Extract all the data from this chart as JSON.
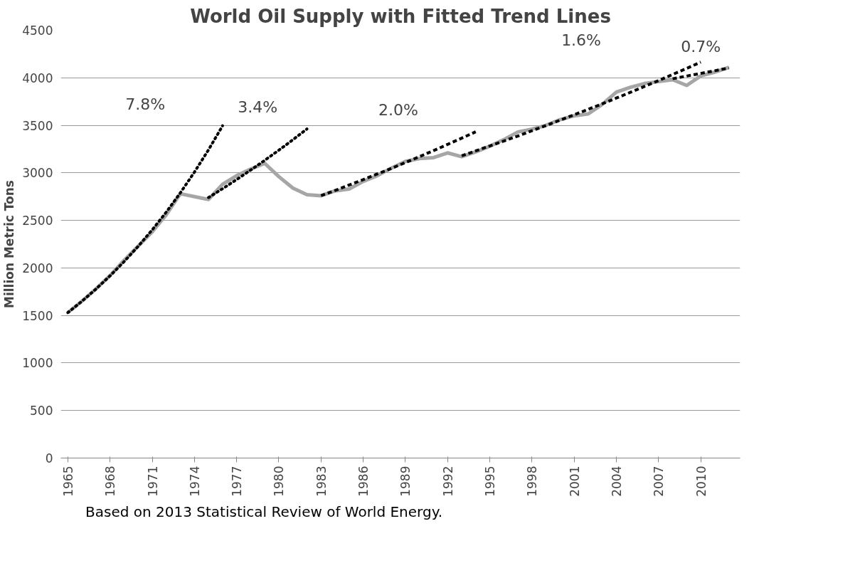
{
  "chart_data": {
    "type": "line",
    "title": "World Oil Supply with Fitted Trend Lines",
    "ylabel": "Million Metric Tons",
    "x": [
      1965,
      1966,
      1967,
      1968,
      1969,
      1970,
      1971,
      1972,
      1973,
      1974,
      1975,
      1976,
      1977,
      1978,
      1979,
      1980,
      1981,
      1982,
      1983,
      1984,
      1985,
      1986,
      1987,
      1988,
      1989,
      1990,
      1991,
      1992,
      1993,
      1994,
      1995,
      1996,
      1997,
      1998,
      1999,
      2000,
      2001,
      2002,
      2003,
      2004,
      2005,
      2006,
      2007,
      2008,
      2009,
      2010,
      2011,
      2012
    ],
    "series": [
      {
        "color": "#a6a6a6",
        "line_style": "solid",
        "values": [
          1530,
          1650,
          1780,
          1920,
          2080,
          2230,
          2380,
          2560,
          2780,
          2750,
          2720,
          2880,
          2970,
          3040,
          3100,
          2960,
          2840,
          2770,
          2760,
          2810,
          2830,
          2910,
          2970,
          3050,
          3120,
          3150,
          3160,
          3210,
          3170,
          3220,
          3280,
          3350,
          3430,
          3460,
          3500,
          3560,
          3600,
          3620,
          3720,
          3850,
          3900,
          3940,
          3960,
          3980,
          3920,
          4020,
          4060,
          4110
        ]
      },
      {
        "color": "#000000",
        "line_style": "dotted",
        "x": [
          1965,
          1966,
          1967,
          1968,
          1969,
          1970,
          1971,
          1972,
          1973,
          1974,
          1975,
          1976
        ],
        "values": [
          1530,
          1649,
          1778,
          1917,
          2066,
          2227,
          2401,
          2588,
          2790,
          3008,
          3242,
          3495
        ]
      },
      {
        "color": "#000000",
        "line_style": "dotted",
        "x": [
          1975,
          1976,
          1977,
          1978,
          1979,
          1980,
          1981,
          1982
        ],
        "values": [
          2740,
          2833,
          2929,
          3029,
          3132,
          3238,
          3348,
          3462
        ]
      },
      {
        "color": "#000000",
        "line_style": "dashed",
        "x": [
          1983,
          1984,
          1985,
          1986,
          1987,
          1988,
          1989,
          1990,
          1991,
          1992,
          1993,
          1994
        ],
        "values": [
          2760,
          2815,
          2872,
          2929,
          2988,
          3047,
          3108,
          3171,
          3234,
          3299,
          3365,
          3432
        ]
      },
      {
        "color": "#000000",
        "line_style": "dashed",
        "x": [
          1993,
          1994,
          1995,
          1996,
          1997,
          1998,
          1999,
          2000,
          2001,
          2002,
          2003,
          2004,
          2005,
          2006,
          2007,
          2008,
          2009,
          2010
        ],
        "values": [
          3180,
          3231,
          3283,
          3335,
          3388,
          3443,
          3498,
          3554,
          3611,
          3668,
          3727,
          3787,
          3847,
          3909,
          3971,
          4035,
          4099,
          4165
        ]
      },
      {
        "color": "#000000",
        "line_style": "dashed",
        "x": [
          2008,
          2009,
          2010,
          2011,
          2012
        ],
        "values": [
          3990,
          4018,
          4046,
          4074,
          4103
        ]
      }
    ],
    "xlim": [
      1964.5,
      2012.8
    ],
    "xticks": [
      1965,
      1968,
      1971,
      1974,
      1977,
      1980,
      1983,
      1986,
      1989,
      1992,
      1995,
      1998,
      2001,
      2004,
      2007,
      2010
    ],
    "ylim": [
      0,
      4500
    ],
    "yticks": [
      0,
      500,
      1000,
      1500,
      2000,
      2500,
      3000,
      3500,
      4000,
      4500
    ],
    "grid": "y",
    "marker": "none",
    "annotations": [
      "7.8%",
      "3.4%",
      "2.0%",
      "1.6%",
      "0.7%",
      "Based on 2013 Statistical Review of World Energy."
    ]
  }
}
